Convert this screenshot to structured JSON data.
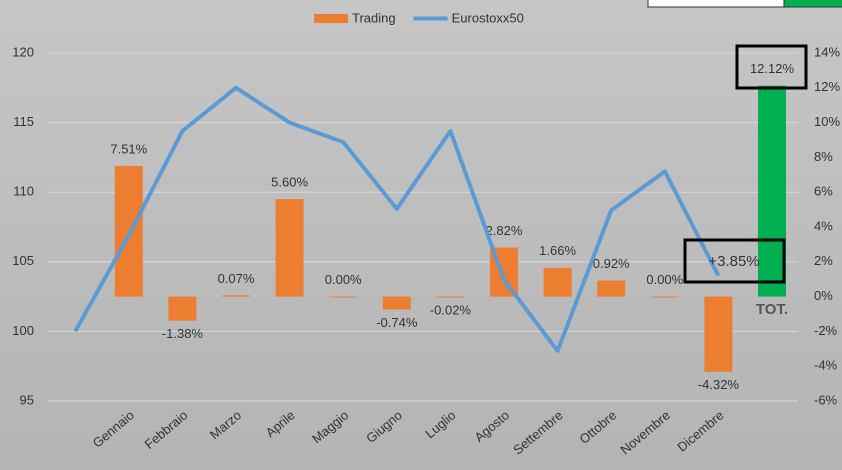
{
  "chart_data": {
    "type": "bar-line",
    "categories": [
      "Gennaio",
      "Febbraio",
      "Marzo",
      "Aprile",
      "Maggio",
      "Giugno",
      "Luglio",
      "Agosto",
      "Settembre",
      "Ottobre",
      "Novembre",
      "Dicembre",
      "TOT."
    ],
    "series": [
      {
        "name": "Trading",
        "type": "bar",
        "axis": "y2",
        "color": "#ed7d31",
        "colors": [
          "#ed7d31",
          "#ed7d31",
          "#ed7d31",
          "#ed7d31",
          "#ed7d31",
          "#ed7d31",
          "#ed7d31",
          "#ed7d31",
          "#ed7d31",
          "#ed7d31",
          "#ed7d31",
          "#ed7d31",
          "#00b050"
        ],
        "values": [
          7.51,
          -1.38,
          0.07,
          5.6,
          0.0,
          -0.74,
          -0.02,
          2.82,
          1.66,
          0.92,
          0.0,
          -4.32,
          12.12
        ],
        "value_labels": [
          "7.51%",
          "-1.38%",
          "0.07%",
          "5.60%",
          "0.00%",
          "-0.74%",
          "-0.02%",
          "2.82%",
          "1.66%",
          "0.92%",
          "0.00%",
          "-4.32%",
          "12.12%"
        ]
      },
      {
        "name": "Eurostoxx50",
        "type": "line",
        "color": "#5b9bd5",
        "values": [
          100.0,
          106.9,
          114.4,
          117.5,
          115.0,
          113.6,
          108.8,
          114.4,
          103.7,
          98.6,
          108.7,
          111.5,
          104.0
        ]
      }
    ],
    "annotation": "+3.85%",
    "ylim": [
      95,
      120
    ],
    "yticks": [
      95,
      100,
      105,
      110,
      115,
      120
    ],
    "y2lim": [
      -6,
      14
    ],
    "y2ticks": [
      {
        "value": -6,
        "label": "-6%"
      },
      {
        "value": -4,
        "label": "-4%"
      },
      {
        "value": -2,
        "label": "-2%"
      },
      {
        "value": 0,
        "label": "0%"
      },
      {
        "value": 2,
        "label": "2%"
      },
      {
        "value": 4,
        "label": "4%"
      },
      {
        "value": 6,
        "label": "6%"
      },
      {
        "value": 8,
        "label": "8%"
      },
      {
        "value": 10,
        "label": "10%"
      },
      {
        "value": 12,
        "label": "12%"
      },
      {
        "value": 14,
        "label": "14%"
      }
    ],
    "grid": true
  }
}
